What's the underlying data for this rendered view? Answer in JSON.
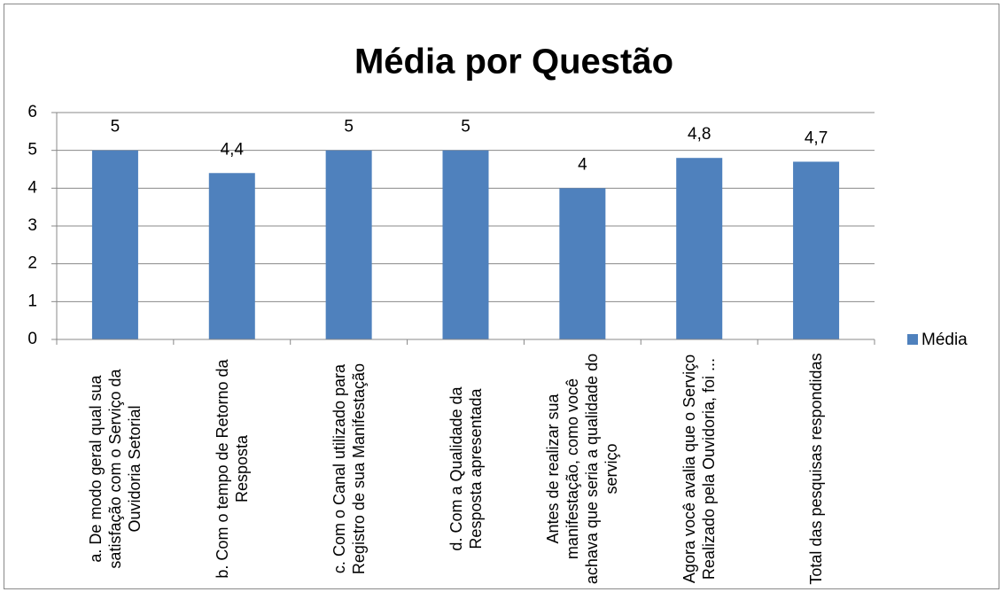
{
  "chart_data": {
    "type": "bar",
    "title": "Média por Questão",
    "categories": [
      "a. De modo geral qual sua satisfação com o Serviço da Ouvidoria Setorial",
      "b. Com o tempo de Retorno da Resposta",
      "c. Com o Canal utilizado para Registro de sua Manifestação",
      "d. Com a Qualidade da Resposta apresentada",
      "Antes de realizar sua manifestação, como você achava que seria a qualidade do serviço",
      "Agora você avalia que o Serviço Realizado pela Ouvidoria, foi ...",
      "Total das pesquisas respondidas"
    ],
    "series": [
      {
        "name": "Média",
        "color": "#4f81bd",
        "values": [
          5,
          4.4,
          5,
          5,
          4,
          4.8,
          4.7
        ],
        "value_labels": [
          "5",
          "4,4",
          "5",
          "5",
          "4",
          "4,8",
          "4,7"
        ]
      }
    ],
    "ylim": [
      0,
      6
    ],
    "yticks": [
      0,
      1,
      2,
      3,
      4,
      5,
      6
    ],
    "grid": true,
    "legend": "right"
  }
}
